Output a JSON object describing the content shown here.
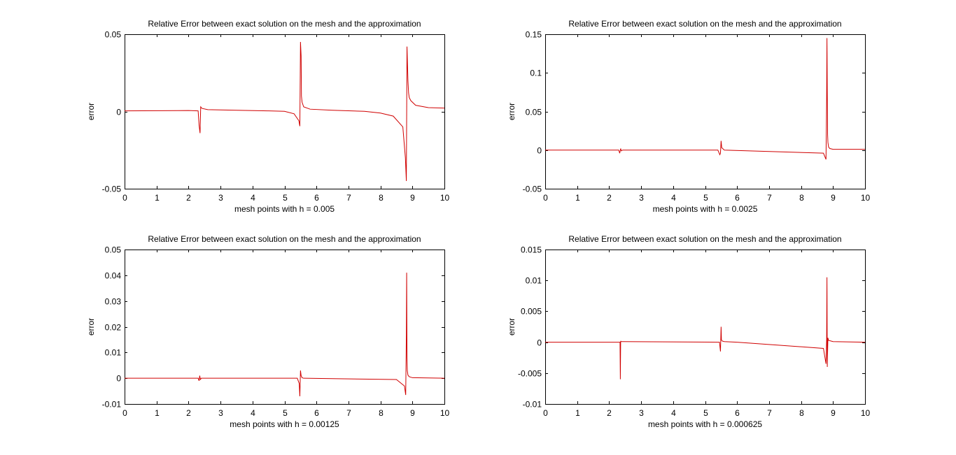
{
  "figure": {
    "background": "#ffffff",
    "axes_color": "#000000",
    "line_color": "#d00000"
  },
  "chart_data": [
    {
      "type": "line",
      "title": "Relative Error between exact solution on the mesh and the approximation",
      "xlabel": "mesh points with  h = 0.005",
      "ylabel": "error",
      "xlim": [
        0,
        10
      ],
      "ylim": [
        -0.05,
        0.05
      ],
      "xticks": [
        "0",
        "1",
        "2",
        "3",
        "4",
        "5",
        "6",
        "7",
        "8",
        "9",
        "10"
      ],
      "yticks": [
        "-0.05",
        "0",
        "0.05"
      ],
      "grid": false,
      "series": [
        {
          "color": "#d00000",
          "x": [
            0,
            2.0,
            2.3,
            2.33,
            2.36,
            2.38,
            2.42,
            2.6,
            3.5,
            4.5,
            5.0,
            5.3,
            5.45,
            5.48,
            5.5,
            5.52,
            5.53,
            5.55,
            5.6,
            5.8,
            6.5,
            7.5,
            8.0,
            8.4,
            8.7,
            8.78,
            8.81,
            8.83,
            8.86,
            8.88,
            8.9,
            8.95,
            9.1,
            9.5,
            10
          ],
          "y": [
            0.0004,
            0.0006,
            0.0004,
            -0.009,
            -0.014,
            0.003,
            0.002,
            0.0012,
            0.0008,
            0.0004,
            0.0001,
            -0.0015,
            -0.006,
            -0.0095,
            0.045,
            0.036,
            0.01,
            0.006,
            0.003,
            0.0015,
            0.0008,
            0.0001,
            -0.001,
            -0.003,
            -0.01,
            -0.03,
            -0.045,
            0.042,
            0.02,
            0.012,
            0.009,
            0.007,
            0.004,
            0.0025,
            0.0022
          ]
        }
      ]
    },
    {
      "type": "line",
      "title": "Relative Error between exact solution on the mesh and the approximation",
      "xlabel": "mesh points with  h = 0.0025",
      "ylabel": "error",
      "xlim": [
        0,
        10
      ],
      "ylim": [
        -0.05,
        0.15
      ],
      "xticks": [
        "0",
        "1",
        "2",
        "3",
        "4",
        "5",
        "6",
        "7",
        "8",
        "9",
        "10"
      ],
      "yticks": [
        "-0.05",
        "0",
        "0.05",
        "0.1",
        "0.15"
      ],
      "grid": false,
      "series": [
        {
          "color": "#d00000",
          "x": [
            0,
            2.3,
            2.33,
            2.36,
            2.38,
            2.42,
            5.4,
            5.46,
            5.48,
            5.5,
            5.52,
            5.55,
            5.6,
            8.7,
            8.78,
            8.8,
            8.81,
            8.82,
            8.83,
            8.84,
            8.86,
            8.9,
            9.0,
            10
          ],
          "y": [
            0,
            0,
            -0.004,
            0.002,
            -0.001,
            0,
            0,
            -0.006,
            -0.004,
            0.012,
            0.003,
            0.002,
            0,
            -0.004,
            -0.012,
            0.065,
            0.145,
            0.077,
            0.02,
            0.01,
            0.004,
            0.002,
            0.001,
            0.001
          ]
        }
      ]
    },
    {
      "type": "line",
      "title": "Relative Error between exact solution on the mesh and the approximation",
      "xlabel": "mesh points with  h = 0.00125",
      "ylabel": "error",
      "xlim": [
        0,
        10
      ],
      "ylim": [
        -0.01,
        0.05
      ],
      "xticks": [
        "0",
        "1",
        "2",
        "3",
        "4",
        "5",
        "6",
        "7",
        "8",
        "9",
        "10"
      ],
      "yticks": [
        "-0.01",
        "0",
        "0.01",
        "0.02",
        "0.03",
        "0.04",
        "0.05"
      ],
      "grid": false,
      "series": [
        {
          "color": "#d00000",
          "x": [
            0,
            2.3,
            2.33,
            2.35,
            2.37,
            2.4,
            5.4,
            5.46,
            5.48,
            5.5,
            5.52,
            5.55,
            5.6,
            8.5,
            8.75,
            8.79,
            8.81,
            8.82,
            8.83,
            8.84,
            8.86,
            8.9,
            9.0,
            10
          ],
          "y": [
            0,
            0,
            -0.001,
            0.001,
            -0.0005,
            0,
            0,
            -0.002,
            -0.007,
            0.003,
            0.001,
            0.0002,
            0,
            -0.0005,
            -0.003,
            -0.0065,
            0.017,
            0.041,
            0.008,
            0.003,
            0.0012,
            0.0006,
            0.0002,
            0
          ]
        }
      ]
    },
    {
      "type": "line",
      "title": "Relative Error between exact solution on the mesh and the approximation",
      "xlabel": "mesh points with  h = 0.000625",
      "ylabel": "error",
      "xlim": [
        0,
        10
      ],
      "ylim": [
        -0.01,
        0.015
      ],
      "xticks": [
        "0",
        "1",
        "2",
        "3",
        "4",
        "5",
        "6",
        "7",
        "8",
        "9",
        "10"
      ],
      "yticks": [
        "-0.01",
        "-0.005",
        "0",
        "0.005",
        "0.01",
        "0.015"
      ],
      "grid": false,
      "series": [
        {
          "color": "#d00000",
          "x": [
            0,
            2.3,
            2.34,
            2.35,
            2.36,
            2.37,
            2.4,
            5.45,
            5.48,
            5.5,
            5.51,
            5.53,
            5.6,
            6.0,
            8.7,
            8.78,
            8.8,
            8.81,
            8.82,
            8.84,
            8.86,
            9.0,
            10
          ],
          "y": [
            0,
            0,
            0,
            -0.006,
            0.0002,
            0.0001,
            0.0001,
            0,
            -0.0015,
            0.0025,
            0.0004,
            0.0002,
            0.0001,
            0,
            -0.001,
            -0.0035,
            0.0005,
            0.0105,
            -0.004,
            0.0007,
            0.0003,
            0.0001,
            0
          ]
        }
      ]
    }
  ]
}
